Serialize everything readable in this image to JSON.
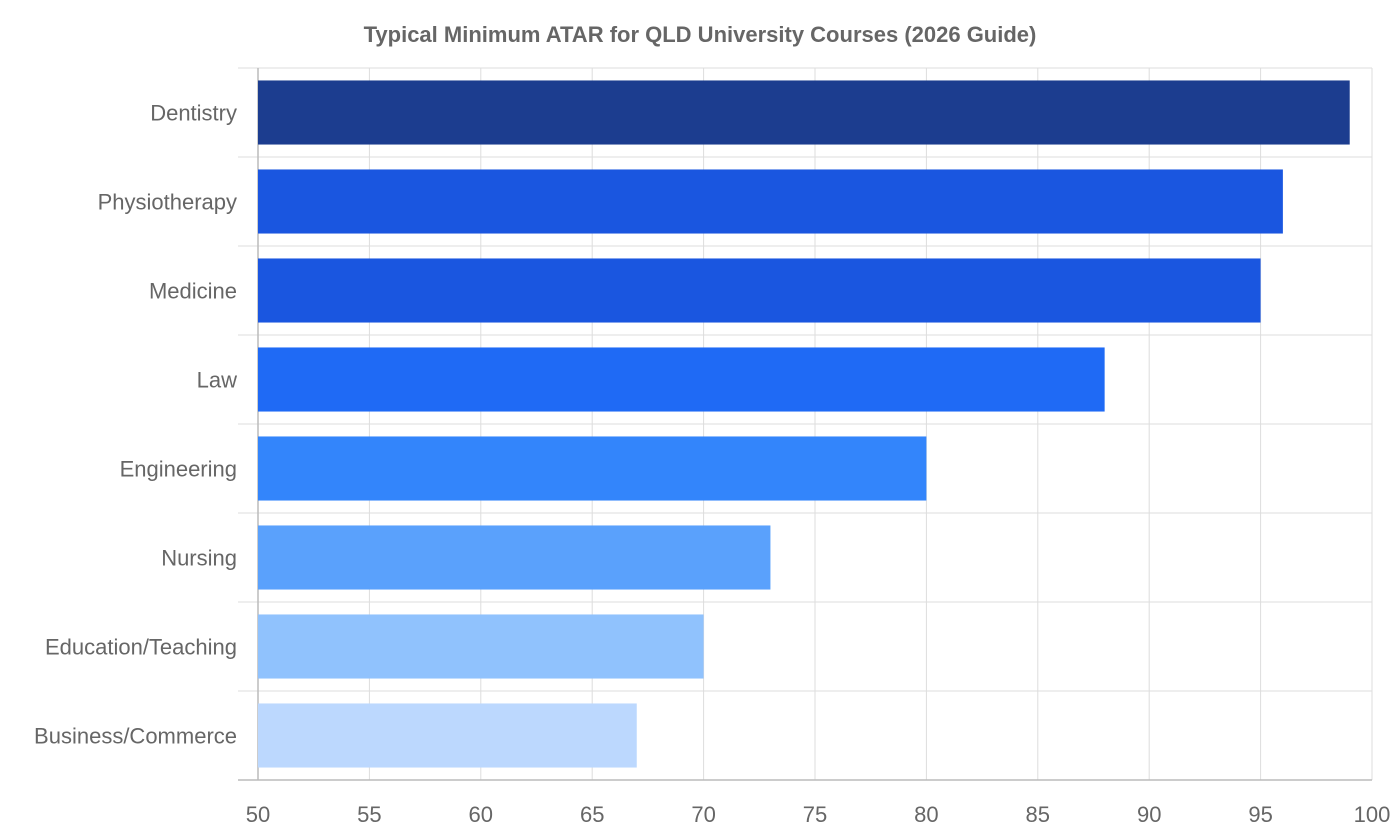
{
  "chart_data": {
    "type": "bar",
    "orientation": "horizontal",
    "title": "Typical Minimum ATAR for QLD University Courses (2026 Guide)",
    "xlabel": "",
    "ylabel": "",
    "categories": [
      "Dentistry",
      "Physiotherapy",
      "Medicine",
      "Law",
      "Engineering",
      "Nursing",
      "Education/Teaching",
      "Business/Commerce"
    ],
    "values": [
      99,
      96,
      95,
      88,
      80,
      73,
      70,
      67
    ],
    "colors": [
      "#1c3d8f",
      "#1a56e0",
      "#1a56e0",
      "#1f6af5",
      "#3385fb",
      "#5aa1fc",
      "#90c2fd",
      "#bcd8fe"
    ],
    "xlim": [
      50,
      100
    ],
    "xticks": [
      50,
      55,
      60,
      65,
      70,
      75,
      80,
      85,
      90,
      95,
      100
    ],
    "grid": true,
    "legend": "none"
  }
}
